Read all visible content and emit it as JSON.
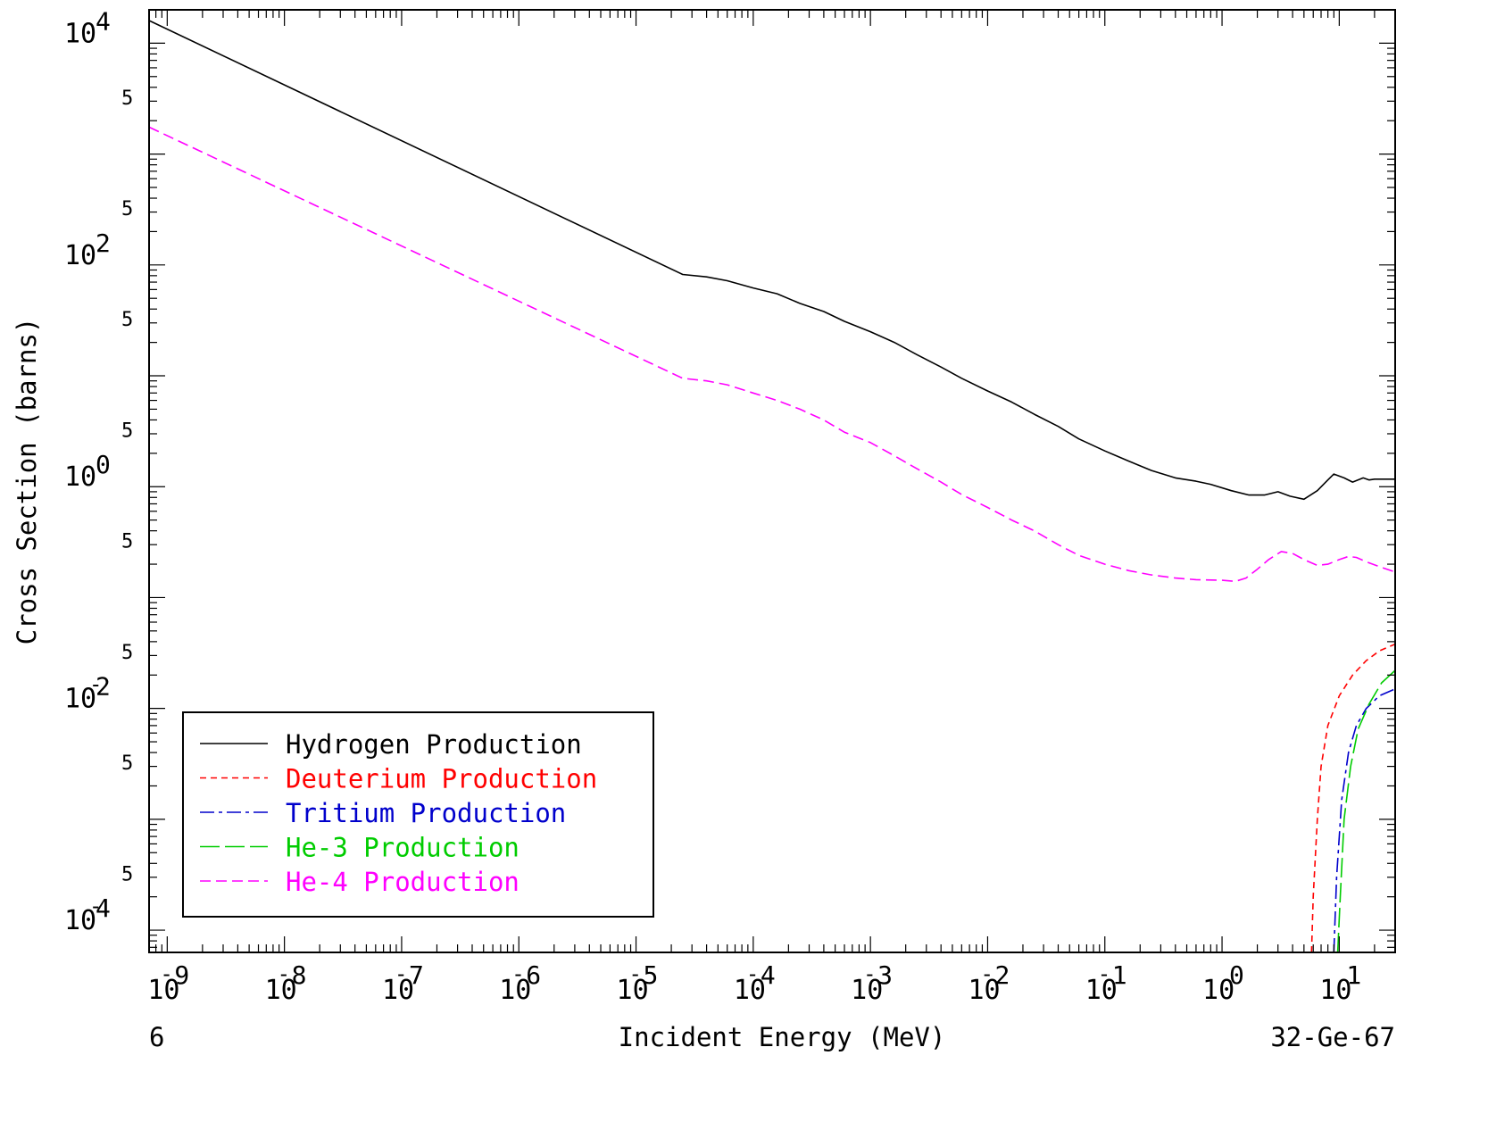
{
  "chart_data": {
    "type": "line",
    "xlabel": "Incident Energy (MeV)",
    "ylabel": "Cross Section (barns)",
    "xscale": "log",
    "yscale": "log",
    "xlim": [
      7e-10,
      30
    ],
    "ylim": [
      6.3e-05,
      20000
    ],
    "x_major_ticks": [
      {
        "value": 1e-09,
        "base": "10",
        "exp": "-9"
      },
      {
        "value": 1e-08,
        "base": "10",
        "exp": "-8"
      },
      {
        "value": 1e-07,
        "base": "10",
        "exp": "-7"
      },
      {
        "value": 1e-06,
        "base": "10",
        "exp": "-6"
      },
      {
        "value": 1e-05,
        "base": "10",
        "exp": "-5"
      },
      {
        "value": 0.0001,
        "base": "10",
        "exp": "-4"
      },
      {
        "value": 0.001,
        "base": "10",
        "exp": "-3"
      },
      {
        "value": 0.01,
        "base": "10",
        "exp": "-2"
      },
      {
        "value": 0.1,
        "base": "10",
        "exp": "-1"
      },
      {
        "value": 1,
        "base": "10",
        "exp": "0"
      },
      {
        "value": 10,
        "base": "10",
        "exp": "1"
      }
    ],
    "y_major_ticks": [
      {
        "value": 10000,
        "base": "10",
        "exp": "4"
      },
      {
        "value": 100,
        "base": "10",
        "exp": "2"
      },
      {
        "value": 1,
        "base": "10",
        "exp": "0"
      },
      {
        "value": 0.01,
        "base": "10",
        "exp": "-2"
      },
      {
        "value": 0.0001,
        "base": "10",
        "exp": "-4"
      }
    ],
    "y_minor_label": "5",
    "y_minor_labeled_values": [
      5000,
      500,
      50,
      5,
      0.5,
      0.05,
      0.005,
      0.0005
    ],
    "legend": {
      "placement": "bottom-left",
      "entries": [
        {
          "label": "Hydrogen Production",
          "color": "#000000",
          "dash": "solid"
        },
        {
          "label": "Deuterium Production",
          "color": "#ff0000",
          "dash": "short-dash"
        },
        {
          "label": "Tritium Production",
          "color": "#0000cc",
          "dash": "dash-dot"
        },
        {
          "label": "He-3 Production",
          "color": "#00cc00",
          "dash": "long-dash"
        },
        {
          "label": "He-4 Production",
          "color": "#ff00ff",
          "dash": "dash"
        }
      ]
    },
    "series": [
      {
        "name": "Hydrogen Production",
        "color": "#000000",
        "points": [
          [
            7e-10,
            16000
          ],
          [
            2.5e-05,
            82
          ],
          [
            4e-05,
            78
          ],
          [
            6e-05,
            72
          ],
          [
            0.0001,
            62
          ],
          [
            0.00016,
            55
          ],
          [
            0.00025,
            45
          ],
          [
            0.0004,
            38
          ],
          [
            0.0006,
            31
          ],
          [
            0.001,
            25
          ],
          [
            0.0016,
            20
          ],
          [
            0.0025,
            15.5
          ],
          [
            0.004,
            12
          ],
          [
            0.006,
            9.5
          ],
          [
            0.01,
            7.3
          ],
          [
            0.016,
            5.8
          ],
          [
            0.025,
            4.5
          ],
          [
            0.04,
            3.5
          ],
          [
            0.06,
            2.7
          ],
          [
            0.1,
            2.1
          ],
          [
            0.16,
            1.7
          ],
          [
            0.25,
            1.4
          ],
          [
            0.4,
            1.2
          ],
          [
            0.6,
            1.12
          ],
          [
            0.8,
            1.05
          ],
          [
            1.2,
            0.92
          ],
          [
            1.7,
            0.84
          ],
          [
            2.3,
            0.84
          ],
          [
            3.0,
            0.9
          ],
          [
            3.8,
            0.82
          ],
          [
            5.0,
            0.77
          ],
          [
            6.5,
            0.92
          ],
          [
            8.0,
            1.15
          ],
          [
            9.0,
            1.3
          ],
          [
            11,
            1.2
          ],
          [
            13,
            1.1
          ],
          [
            16,
            1.2
          ],
          [
            18,
            1.15
          ],
          [
            20,
            1.17
          ],
          [
            30,
            1.17
          ]
        ]
      },
      {
        "name": "Deuterium Production",
        "color": "#ff0000",
        "points": [
          [
            5.8,
            6.3e-05
          ],
          [
            6.0,
            0.0002
          ],
          [
            6.5,
            0.001
          ],
          [
            7.0,
            0.003
          ],
          [
            8.0,
            0.007
          ],
          [
            10,
            0.013
          ],
          [
            13,
            0.02
          ],
          [
            17,
            0.027
          ],
          [
            22,
            0.033
          ],
          [
            30,
            0.038
          ]
        ]
      },
      {
        "name": "Tritium Production",
        "color": "#0000cc",
        "points": [
          [
            9.0,
            6.3e-05
          ],
          [
            9.5,
            0.0003
          ],
          [
            10.5,
            0.0015
          ],
          [
            12,
            0.004
          ],
          [
            14,
            0.007
          ],
          [
            17,
            0.01
          ],
          [
            22,
            0.013
          ],
          [
            30,
            0.015
          ]
        ]
      },
      {
        "name": "He-3 Production",
        "color": "#00cc00",
        "points": [
          [
            9.7,
            6.3e-05
          ],
          [
            10.2,
            0.0002
          ],
          [
            11,
            0.001
          ],
          [
            12.5,
            0.003
          ],
          [
            14.5,
            0.0065
          ],
          [
            18,
            0.011
          ],
          [
            23,
            0.017
          ],
          [
            30,
            0.022
          ]
        ]
      },
      {
        "name": "He-4 Production",
        "color": "#ff00ff",
        "points": [
          [
            7e-10,
            1750
          ],
          [
            2.5e-05,
            9.5
          ],
          [
            4e-05,
            9.0
          ],
          [
            6e-05,
            8.3
          ],
          [
            0.0001,
            7.0
          ],
          [
            0.00016,
            6.0
          ],
          [
            0.00025,
            5.0
          ],
          [
            0.0004,
            4.0
          ],
          [
            0.0006,
            3.1
          ],
          [
            0.001,
            2.5
          ],
          [
            0.0016,
            1.9
          ],
          [
            0.0025,
            1.45
          ],
          [
            0.004,
            1.1
          ],
          [
            0.006,
            0.85
          ],
          [
            0.01,
            0.65
          ],
          [
            0.016,
            0.5
          ],
          [
            0.025,
            0.4
          ],
          [
            0.04,
            0.3
          ],
          [
            0.06,
            0.24
          ],
          [
            0.1,
            0.2
          ],
          [
            0.16,
            0.175
          ],
          [
            0.25,
            0.16
          ],
          [
            0.4,
            0.15
          ],
          [
            0.6,
            0.145
          ],
          [
            1.0,
            0.143
          ],
          [
            1.3,
            0.14
          ],
          [
            1.6,
            0.15
          ],
          [
            2.0,
            0.18
          ],
          [
            2.5,
            0.22
          ],
          [
            3.2,
            0.26
          ],
          [
            4.0,
            0.25
          ],
          [
            5.0,
            0.22
          ],
          [
            6.5,
            0.195
          ],
          [
            8.0,
            0.2
          ],
          [
            10,
            0.22
          ],
          [
            12,
            0.235
          ],
          [
            14,
            0.23
          ],
          [
            17,
            0.21
          ],
          [
            22,
            0.19
          ],
          [
            30,
            0.17
          ]
        ]
      }
    ]
  },
  "footer": {
    "left": "6",
    "center": "Incident Energy (MeV)",
    "right": "32-Ge-67"
  }
}
